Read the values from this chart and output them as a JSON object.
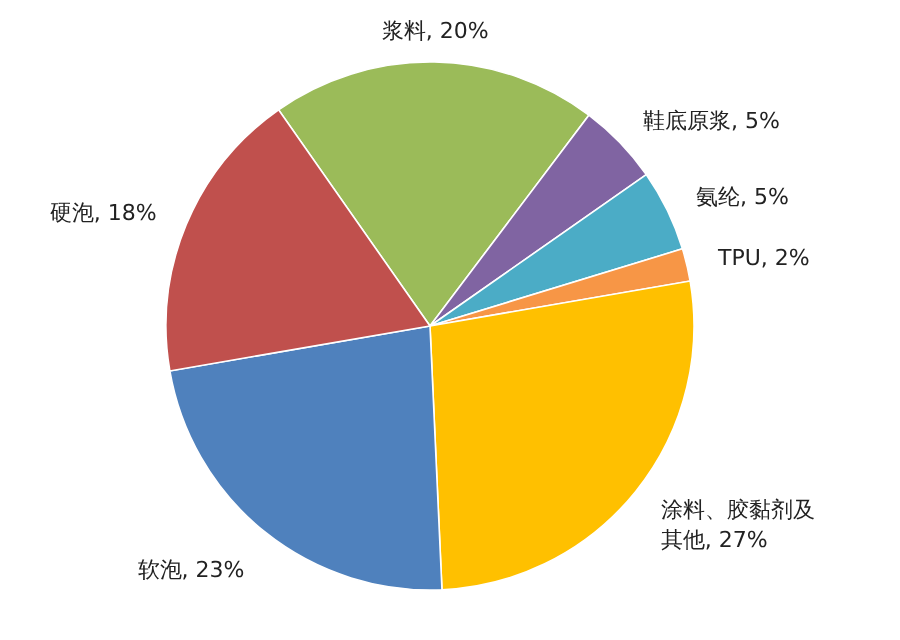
{
  "chart_data": {
    "type": "pie",
    "categories": [
      "浆料",
      "鞋底原浆",
      "氨纶",
      "TPU",
      "涂料、胶黏剂及其他",
      "软泡",
      "硬泡"
    ],
    "values": [
      20,
      5,
      5,
      2,
      27,
      23,
      18
    ],
    "value_labels": [
      "20%",
      "5%",
      "5%",
      "2%",
      "27%",
      "23%",
      "18%"
    ],
    "colors": [
      "#9bbb59",
      "#8064a2",
      "#4bacc6",
      "#f79646",
      "#ffc000",
      "#4f81bd",
      "#c0504d"
    ]
  }
}
